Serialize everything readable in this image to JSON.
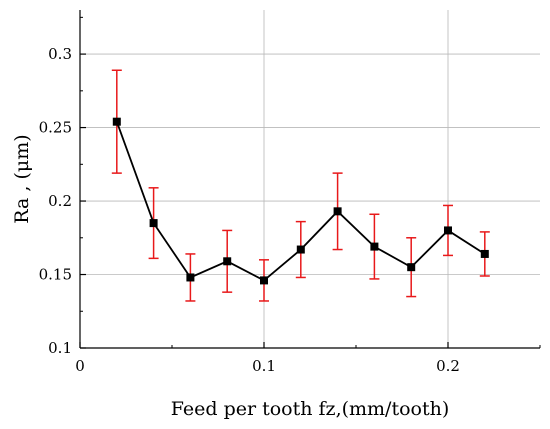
{
  "chart_data": {
    "type": "line",
    "title": "",
    "xlabel": "Feed per tooth fz,(mm/tooth)",
    "ylabel": "Ra , (μm)",
    "xlim": [
      0,
      0.25
    ],
    "ylim": [
      0.1,
      0.33
    ],
    "xticks": [
      0,
      0.1,
      0.2
    ],
    "xtick_labels": [
      "0",
      "0.1",
      "0.2"
    ],
    "yticks": [
      0.1,
      0.15,
      0.2,
      0.25,
      0.3
    ],
    "ytick_labels": [
      "0.1",
      "0.15",
      "0.2",
      "0.25",
      "0.3"
    ],
    "grid": true,
    "legend": "none",
    "series": [
      {
        "x": [
          0.02,
          0.04,
          0.06,
          0.08,
          0.1,
          0.12,
          0.14,
          0.16,
          0.18,
          0.2,
          0.22
        ],
        "values": [
          0.254,
          0.185,
          0.148,
          0.159,
          0.146,
          0.167,
          0.193,
          0.169,
          0.155,
          0.18,
          0.164
        ],
        "error_low": [
          0.219,
          0.161,
          0.132,
          0.138,
          0.132,
          0.148,
          0.167,
          0.147,
          0.135,
          0.163,
          0.149
        ],
        "error_high": [
          0.289,
          0.209,
          0.164,
          0.18,
          0.16,
          0.186,
          0.219,
          0.191,
          0.175,
          0.197,
          0.179
        ],
        "color": "#000000",
        "error_color": "#e8191a"
      }
    ]
  }
}
